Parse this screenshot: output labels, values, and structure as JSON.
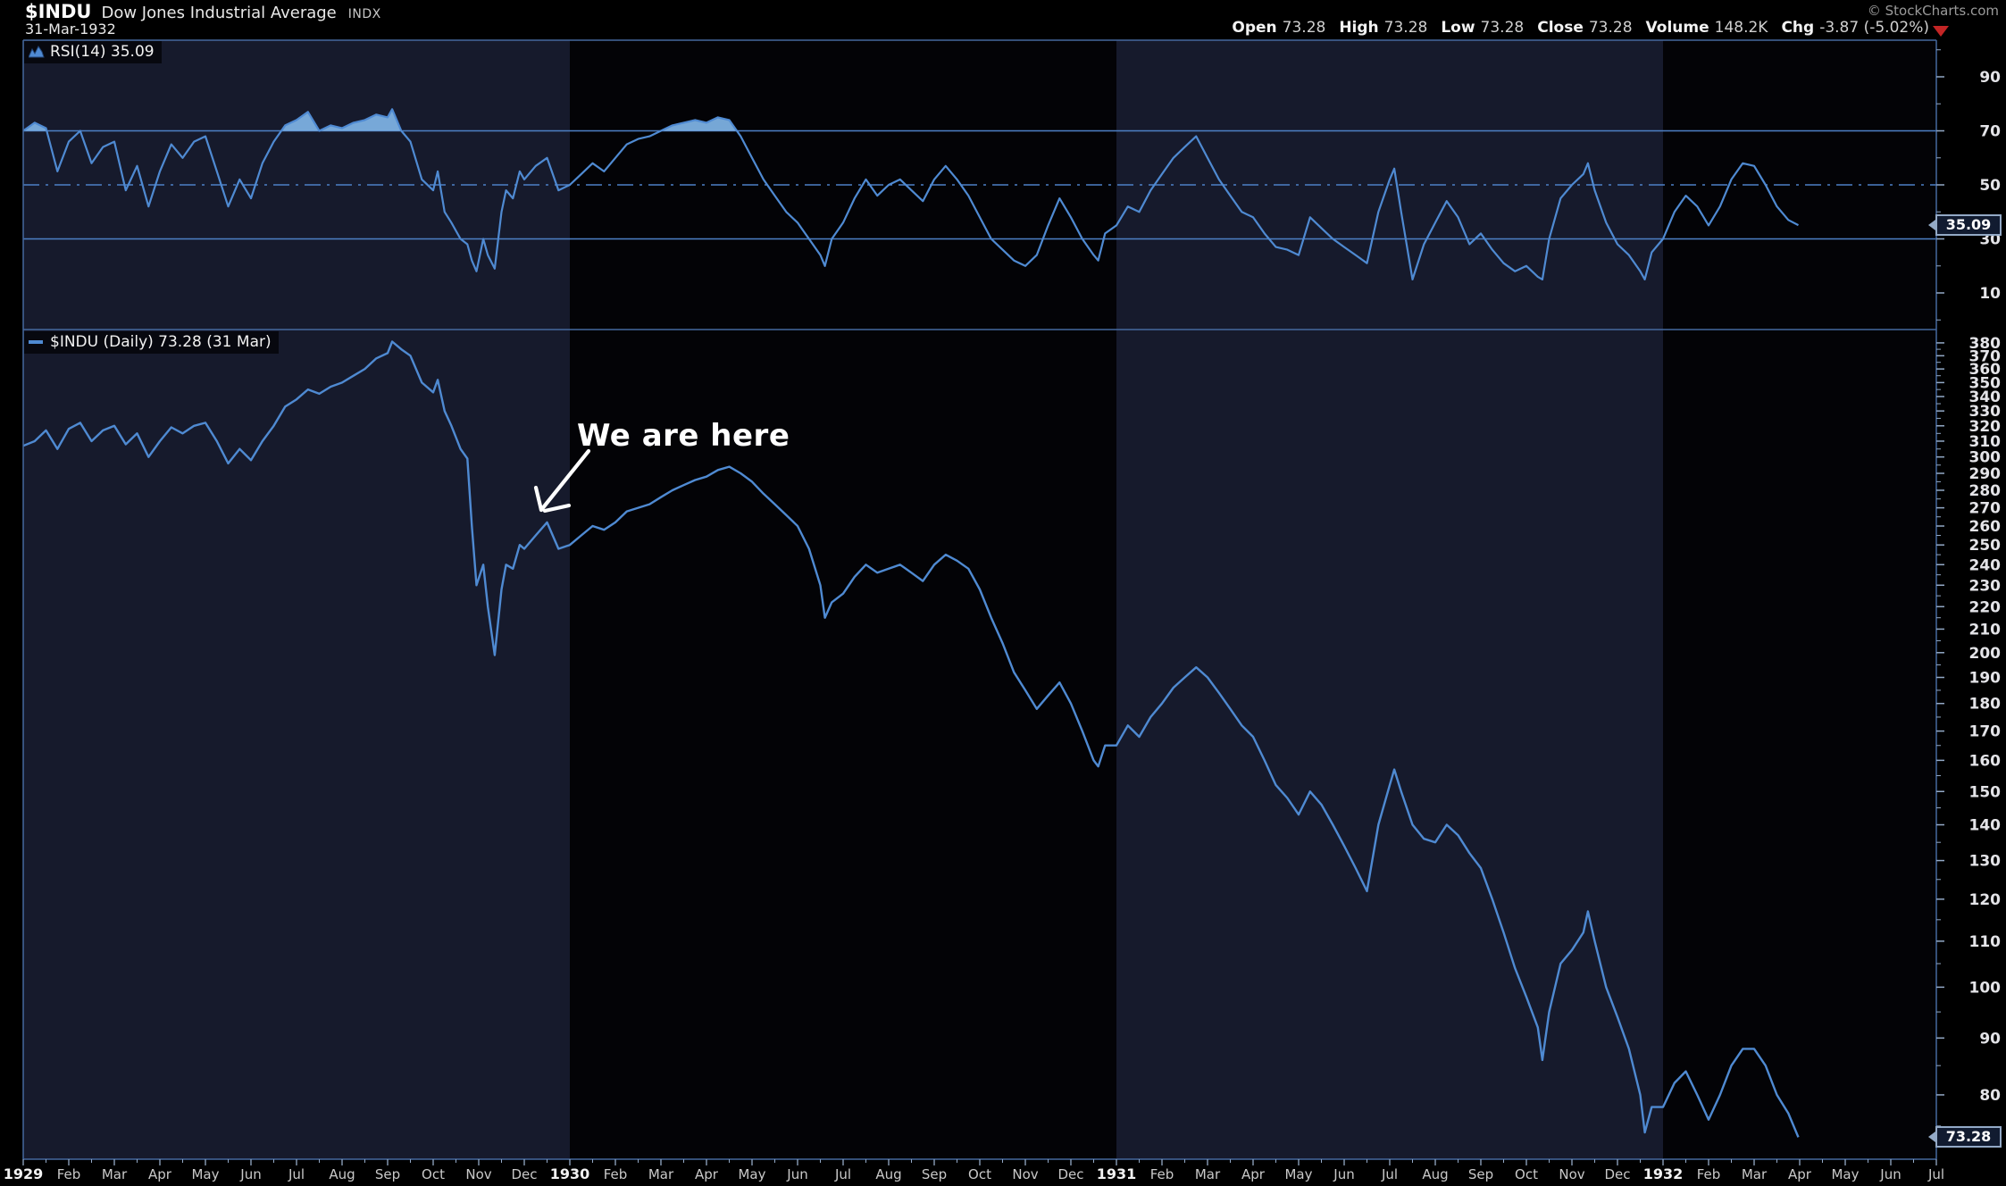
{
  "header": {
    "symbol": "$INDU",
    "name": "Dow Jones Industrial Average",
    "exchange": "INDX",
    "date": "31-Mar-1932",
    "copyright": "© StockCharts.com",
    "quote": [
      {
        "label": "Open",
        "value": "73.28"
      },
      {
        "label": "High",
        "value": "73.28"
      },
      {
        "label": "Low",
        "value": "73.28"
      },
      {
        "label": "Close",
        "value": "73.28"
      },
      {
        "label": "Volume",
        "value": "148.2K"
      },
      {
        "label": "Chg",
        "value": "-3.87 (-5.02%)"
      }
    ],
    "change_direction": "down"
  },
  "annotation": {
    "text": "We are here"
  },
  "colors": {
    "band_light": "#161a2c",
    "band_dark": "#030306",
    "frame": "#45699e",
    "ref_line": "#4d80c6",
    "series_line": "#4f8ad2",
    "overbought_fill": "#7cb0e2",
    "tick": "#93a9c6",
    "tick_text": "#e4e4e8",
    "month_text": "#c9c9c9",
    "year_text": "#f3f3f3",
    "chg_triangle_red": "#c32525",
    "box_bg": "#111b30",
    "box_border": "#93a9c6"
  },
  "chart_data": {
    "type": "line",
    "title": "$INDU Dow Jones Industrial Average (INDX)",
    "x_unit": "months since Jan-1929",
    "xlim": [
      0,
      42
    ],
    "x_labels": [
      "1929",
      "Feb",
      "Mar",
      "Apr",
      "May",
      "Jun",
      "Jul",
      "Aug",
      "Sep",
      "Oct",
      "Nov",
      "Dec",
      "1930",
      "Feb",
      "Mar",
      "Apr",
      "May",
      "Jun",
      "Jul",
      "Aug",
      "Sep",
      "Oct",
      "Nov",
      "Dec",
      "1931",
      "Feb",
      "Mar",
      "Apr",
      "May",
      "Jun",
      "Jul",
      "Aug",
      "Sep",
      "Oct",
      "Nov",
      "Dec",
      "1932",
      "Feb",
      "Mar",
      "Apr",
      "May",
      "Jun",
      "Jul"
    ],
    "panels": [
      {
        "id": "rsi",
        "label": "RSI(14) 35.09",
        "ylim": [
          0,
          100
        ],
        "yticks": [
          90,
          70,
          50,
          30,
          10
        ],
        "ref_lines": {
          "overbought": 70,
          "mid": 50,
          "oversold": 30
        },
        "last_value": 35.09,
        "last_label": "35.09"
      },
      {
        "id": "price",
        "label": "$INDU (Daily) 73.28 (31 Mar)",
        "scale": "log",
        "yticks": [
          380,
          370,
          360,
          350,
          340,
          330,
          320,
          310,
          300,
          290,
          280,
          270,
          260,
          250,
          240,
          230,
          220,
          210,
          200,
          190,
          180,
          170,
          160,
          150,
          140,
          130,
          120,
          110,
          100,
          90,
          80
        ],
        "last_value": 73.28,
        "last_label": "73.28"
      }
    ],
    "points_format": [
      "month_index",
      "indu_close",
      "rsi14"
    ],
    "points": [
      [
        0,
        307,
        70
      ],
      [
        0.25,
        310,
        73
      ],
      [
        0.5,
        317,
        71
      ],
      [
        0.75,
        305,
        55
      ],
      [
        1,
        318,
        66
      ],
      [
        1.25,
        322,
        70
      ],
      [
        1.5,
        310,
        58
      ],
      [
        1.75,
        317,
        64
      ],
      [
        2,
        320,
        66
      ],
      [
        2.25,
        308,
        48
      ],
      [
        2.5,
        315,
        57
      ],
      [
        2.75,
        300,
        42
      ],
      [
        3,
        310,
        55
      ],
      [
        3.25,
        319,
        65
      ],
      [
        3.5,
        315,
        60
      ],
      [
        3.75,
        320,
        66
      ],
      [
        4,
        322,
        68
      ],
      [
        4.25,
        310,
        55
      ],
      [
        4.5,
        296,
        42
      ],
      [
        4.75,
        305,
        52
      ],
      [
        5,
        298,
        45
      ],
      [
        5.25,
        310,
        58
      ],
      [
        5.5,
        320,
        66
      ],
      [
        5.75,
        333,
        72
      ],
      [
        6,
        338,
        74
      ],
      [
        6.25,
        345,
        77
      ],
      [
        6.5,
        342,
        70
      ],
      [
        6.75,
        347,
        72
      ],
      [
        7,
        350,
        71
      ],
      [
        7.25,
        355,
        73
      ],
      [
        7.5,
        360,
        74
      ],
      [
        7.75,
        368,
        76
      ],
      [
        8,
        372,
        75
      ],
      [
        8.1,
        381,
        78
      ],
      [
        8.3,
        375,
        70
      ],
      [
        8.5,
        370,
        66
      ],
      [
        8.75,
        350,
        52
      ],
      [
        9,
        343,
        48
      ],
      [
        9.1,
        352,
        55
      ],
      [
        9.25,
        330,
        40
      ],
      [
        9.4,
        320,
        36
      ],
      [
        9.6,
        305,
        30
      ],
      [
        9.75,
        299,
        28
      ],
      [
        9.85,
        260,
        22
      ],
      [
        9.95,
        230,
        18
      ],
      [
        10.1,
        240,
        30
      ],
      [
        10.2,
        220,
        24
      ],
      [
        10.35,
        199,
        19
      ],
      [
        10.5,
        228,
        40
      ],
      [
        10.6,
        240,
        48
      ],
      [
        10.75,
        238,
        45
      ],
      [
        10.9,
        250,
        55
      ],
      [
        11,
        248,
        52
      ],
      [
        11.25,
        255,
        57
      ],
      [
        11.5,
        262,
        60
      ],
      [
        11.75,
        248,
        48
      ],
      [
        12,
        250,
        50
      ],
      [
        12.25,
        255,
        54
      ],
      [
        12.5,
        260,
        58
      ],
      [
        12.75,
        258,
        55
      ],
      [
        13,
        262,
        60
      ],
      [
        13.25,
        268,
        65
      ],
      [
        13.5,
        270,
        67
      ],
      [
        13.75,
        272,
        68
      ],
      [
        14,
        276,
        70
      ],
      [
        14.25,
        280,
        72
      ],
      [
        14.5,
        283,
        73
      ],
      [
        14.75,
        286,
        74
      ],
      [
        15,
        288,
        73
      ],
      [
        15.25,
        292,
        75
      ],
      [
        15.5,
        294,
        74
      ],
      [
        15.75,
        290,
        68
      ],
      [
        16,
        285,
        60
      ],
      [
        16.25,
        278,
        52
      ],
      [
        16.5,
        272,
        46
      ],
      [
        16.75,
        266,
        40
      ],
      [
        17,
        260,
        36
      ],
      [
        17.25,
        248,
        30
      ],
      [
        17.5,
        230,
        24
      ],
      [
        17.6,
        215,
        20
      ],
      [
        17.75,
        222,
        30
      ],
      [
        18,
        226,
        36
      ],
      [
        18.25,
        234,
        45
      ],
      [
        18.5,
        240,
        52
      ],
      [
        18.75,
        236,
        46
      ],
      [
        19,
        238,
        50
      ],
      [
        19.25,
        240,
        52
      ],
      [
        19.5,
        236,
        48
      ],
      [
        19.75,
        232,
        44
      ],
      [
        20,
        240,
        52
      ],
      [
        20.25,
        245,
        57
      ],
      [
        20.5,
        242,
        52
      ],
      [
        20.75,
        238,
        46
      ],
      [
        21,
        228,
        38
      ],
      [
        21.25,
        215,
        30
      ],
      [
        21.5,
        204,
        26
      ],
      [
        21.75,
        192,
        22
      ],
      [
        22,
        185,
        20
      ],
      [
        22.25,
        178,
        24
      ],
      [
        22.5,
        183,
        35
      ],
      [
        22.75,
        188,
        45
      ],
      [
        23,
        180,
        38
      ],
      [
        23.25,
        170,
        30
      ],
      [
        23.5,
        160,
        24
      ],
      [
        23.6,
        158,
        22
      ],
      [
        23.75,
        165,
        32
      ],
      [
        24,
        165,
        35
      ],
      [
        24.25,
        172,
        42
      ],
      [
        24.5,
        168,
        40
      ],
      [
        24.75,
        175,
        48
      ],
      [
        25,
        180,
        54
      ],
      [
        25.25,
        186,
        60
      ],
      [
        25.5,
        190,
        64
      ],
      [
        25.75,
        194,
        68
      ],
      [
        26,
        190,
        60
      ],
      [
        26.25,
        184,
        52
      ],
      [
        26.5,
        178,
        46
      ],
      [
        26.75,
        172,
        40
      ],
      [
        27,
        168,
        38
      ],
      [
        27.25,
        160,
        32
      ],
      [
        27.5,
        152,
        27
      ],
      [
        27.75,
        148,
        26
      ],
      [
        28,
        143,
        24
      ],
      [
        28.25,
        150,
        38
      ],
      [
        28.5,
        146,
        34
      ],
      [
        28.75,
        140,
        30
      ],
      [
        29,
        134,
        27
      ],
      [
        29.25,
        128,
        24
      ],
      [
        29.5,
        122,
        21
      ],
      [
        29.75,
        140,
        40
      ],
      [
        30,
        152,
        52
      ],
      [
        30.1,
        157,
        56
      ],
      [
        30.25,
        150,
        40
      ],
      [
        30.5,
        140,
        15
      ],
      [
        30.75,
        136,
        28
      ],
      [
        31,
        135,
        36
      ],
      [
        31.25,
        140,
        44
      ],
      [
        31.5,
        137,
        38
      ],
      [
        31.75,
        132,
        28
      ],
      [
        32,
        128,
        32
      ],
      [
        32.25,
        120,
        26
      ],
      [
        32.5,
        112,
        21
      ],
      [
        32.75,
        104,
        18
      ],
      [
        33,
        98,
        20
      ],
      [
        33.25,
        92,
        16
      ],
      [
        33.35,
        86,
        15
      ],
      [
        33.5,
        95,
        30
      ],
      [
        33.75,
        105,
        45
      ],
      [
        34,
        108,
        50
      ],
      [
        34.25,
        112,
        54
      ],
      [
        34.35,
        117,
        58
      ],
      [
        34.5,
        110,
        48
      ],
      [
        34.75,
        100,
        36
      ],
      [
        35,
        94,
        28
      ],
      [
        35.25,
        88,
        24
      ],
      [
        35.5,
        80,
        18
      ],
      [
        35.6,
        74,
        15
      ],
      [
        35.75,
        78,
        25
      ],
      [
        36,
        78,
        30
      ],
      [
        36.25,
        82,
        40
      ],
      [
        36.5,
        84,
        46
      ],
      [
        36.75,
        80,
        42
      ],
      [
        37,
        76,
        35
      ],
      [
        37.25,
        80,
        42
      ],
      [
        37.5,
        85,
        52
      ],
      [
        37.75,
        88,
        58
      ],
      [
        38,
        88,
        57
      ],
      [
        38.25,
        85,
        50
      ],
      [
        38.5,
        80,
        42
      ],
      [
        38.75,
        77,
        37
      ],
      [
        38.97,
        73.28,
        35.09
      ]
    ]
  }
}
